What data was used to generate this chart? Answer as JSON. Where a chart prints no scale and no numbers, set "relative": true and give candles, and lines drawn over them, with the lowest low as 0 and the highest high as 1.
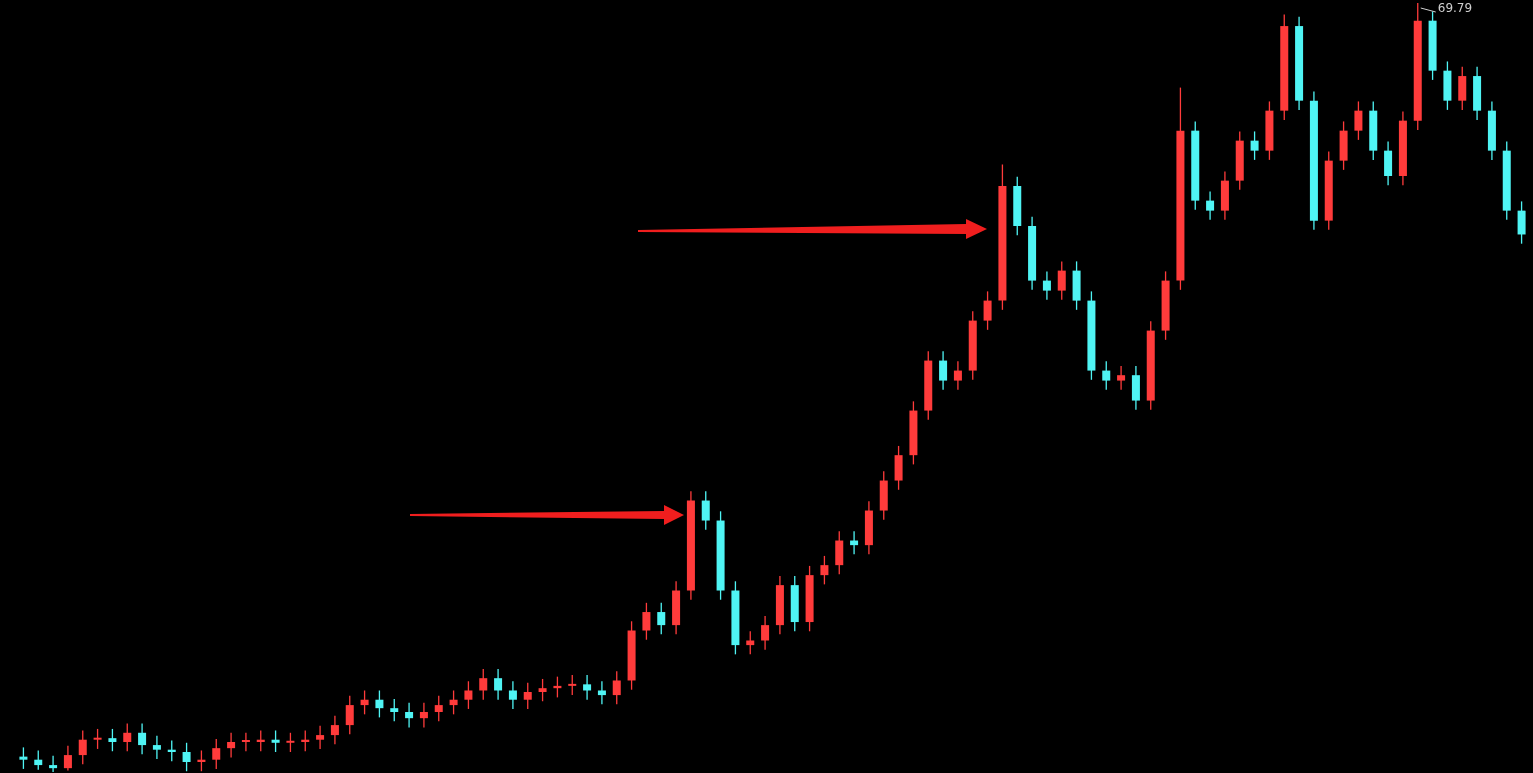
{
  "chart_data": {
    "type": "candlestick",
    "relative": true,
    "annotations": [
      "69.79"
    ],
    "categories": [
      null,
      null,
      null,
      null,
      null,
      null,
      null,
      null,
      null,
      null,
      null,
      null,
      null,
      null,
      null,
      null,
      null,
      null,
      null,
      null,
      null,
      null,
      null,
      null,
      null,
      null,
      null,
      null,
      null,
      null,
      null,
      null,
      null,
      null,
      null,
      null,
      null,
      null,
      null,
      null,
      null,
      null,
      null,
      null,
      null,
      null,
      null,
      null,
      null,
      null,
      null,
      null,
      null,
      null,
      null,
      null,
      null,
      null,
      null,
      null,
      null,
      null,
      null,
      null,
      null,
      null,
      null,
      null,
      null,
      null,
      null,
      null,
      null,
      null,
      null,
      null,
      null,
      null,
      null,
      null,
      null,
      null,
      null,
      null,
      null,
      null,
      null,
      null,
      null,
      null,
      null,
      null,
      null,
      null,
      null,
      null,
      null,
      null,
      null,
      null,
      null,
      null
    ],
    "ohlc": [
      [
        0.02,
        0.032,
        0.004,
        0.016
      ],
      [
        0.016,
        0.028,
        0.003,
        0.009
      ],
      [
        0.009,
        0.021,
        0,
        0.005
      ],
      [
        0.005,
        0.034,
        0.002,
        0.022
      ],
      [
        0.022,
        0.054,
        0.01,
        0.042
      ],
      [
        0.042,
        0.056,
        0.03,
        0.044
      ],
      [
        0.044,
        0.056,
        0.027,
        0.039
      ],
      [
        0.039,
        0.063,
        0.027,
        0.051
      ],
      [
        0.051,
        0.063,
        0.023,
        0.035
      ],
      [
        0.035,
        0.047,
        0.017,
        0.029
      ],
      [
        0.029,
        0.041,
        0.014,
        0.026
      ],
      [
        0.026,
        0.038,
        0.001,
        0.013
      ],
      [
        0.013,
        0.028,
        0.001,
        0.016
      ],
      [
        0.016,
        0.043,
        0.004,
        0.031
      ],
      [
        0.031,
        0.051,
        0.019,
        0.039
      ],
      [
        0.039,
        0.051,
        0.027,
        0.039
      ],
      [
        0.039,
        0.054,
        0.027,
        0.042
      ],
      [
        0.042,
        0.054,
        0.026,
        0.038
      ],
      [
        0.038,
        0.051,
        0.026,
        0.039
      ],
      [
        0.039,
        0.054,
        0.027,
        0.042
      ],
      [
        0.042,
        0.06,
        0.03,
        0.048
      ],
      [
        0.048,
        0.073,
        0.036,
        0.061
      ],
      [
        0.061,
        0.099,
        0.049,
        0.087
      ],
      [
        0.087,
        0.106,
        0.075,
        0.094
      ],
      [
        0.094,
        0.106,
        0.071,
        0.083
      ],
      [
        0.083,
        0.095,
        0.066,
        0.078
      ],
      [
        0.078,
        0.09,
        0.058,
        0.07
      ],
      [
        0.07,
        0.09,
        0.058,
        0.078
      ],
      [
        0.078,
        0.099,
        0.066,
        0.087
      ],
      [
        0.087,
        0.106,
        0.075,
        0.094
      ],
      [
        0.094,
        0.118,
        0.082,
        0.106
      ],
      [
        0.106,
        0.134,
        0.094,
        0.122
      ],
      [
        0.122,
        0.134,
        0.094,
        0.106
      ],
      [
        0.106,
        0.118,
        0.082,
        0.094
      ],
      [
        0.094,
        0.116,
        0.082,
        0.104
      ],
      [
        0.104,
        0.121,
        0.092,
        0.109
      ],
      [
        0.109,
        0.124,
        0.097,
        0.112
      ],
      [
        0.112,
        0.126,
        0.1,
        0.114
      ],
      [
        0.114,
        0.126,
        0.094,
        0.106
      ],
      [
        0.106,
        0.118,
        0.088,
        0.1
      ],
      [
        0.1,
        0.131,
        0.088,
        0.119
      ],
      [
        0.119,
        0.196,
        0.107,
        0.184
      ],
      [
        0.184,
        0.22,
        0.172,
        0.208
      ],
      [
        0.208,
        0.22,
        0.179,
        0.191
      ],
      [
        0.191,
        0.248,
        0.179,
        0.236
      ],
      [
        0.236,
        0.365,
        0.224,
        0.353
      ],
      [
        0.353,
        0.365,
        0.315,
        0.327
      ],
      [
        0.327,
        0.339,
        0.224,
        0.236
      ],
      [
        0.236,
        0.248,
        0.153,
        0.165
      ],
      [
        0.165,
        0.183,
        0.153,
        0.171
      ],
      [
        0.171,
        0.203,
        0.159,
        0.191
      ],
      [
        0.191,
        0.255,
        0.179,
        0.243
      ],
      [
        0.243,
        0.255,
        0.183,
        0.195
      ],
      [
        0.195,
        0.268,
        0.183,
        0.256
      ],
      [
        0.256,
        0.281,
        0.244,
        0.269
      ],
      [
        0.269,
        0.313,
        0.257,
        0.301
      ],
      [
        0.301,
        0.313,
        0.283,
        0.295
      ],
      [
        0.295,
        0.352,
        0.283,
        0.34
      ],
      [
        0.34,
        0.391,
        0.328,
        0.379
      ],
      [
        0.379,
        0.424,
        0.367,
        0.412
      ],
      [
        0.412,
        0.482,
        0.4,
        0.47
      ],
      [
        0.47,
        0.547,
        0.458,
        0.535
      ],
      [
        0.535,
        0.547,
        0.497,
        0.509
      ],
      [
        0.509,
        0.534,
        0.497,
        0.522
      ],
      [
        0.522,
        0.599,
        0.51,
        0.587
      ],
      [
        0.587,
        0.625,
        0.575,
        0.613
      ],
      [
        0.613,
        0.79,
        0.601,
        0.762
      ],
      [
        0.762,
        0.774,
        0.698,
        0.71
      ],
      [
        0.71,
        0.722,
        0.627,
        0.639
      ],
      [
        0.639,
        0.651,
        0.614,
        0.626
      ],
      [
        0.626,
        0.664,
        0.614,
        0.652
      ],
      [
        0.652,
        0.664,
        0.601,
        0.613
      ],
      [
        0.613,
        0.625,
        0.51,
        0.522
      ],
      [
        0.522,
        0.534,
        0.497,
        0.509
      ],
      [
        0.509,
        0.528,
        0.497,
        0.516
      ],
      [
        0.516,
        0.528,
        0.471,
        0.483
      ],
      [
        0.483,
        0.586,
        0.471,
        0.574
      ],
      [
        0.574,
        0.651,
        0.562,
        0.639
      ],
      [
        0.639,
        0.89,
        0.627,
        0.834
      ],
      [
        0.834,
        0.846,
        0.731,
        0.743
      ],
      [
        0.743,
        0.755,
        0.718,
        0.73
      ],
      [
        0.73,
        0.781,
        0.718,
        0.769
      ],
      [
        0.769,
        0.833,
        0.757,
        0.821
      ],
      [
        0.821,
        0.833,
        0.796,
        0.808
      ],
      [
        0.808,
        0.872,
        0.796,
        0.86
      ],
      [
        0.86,
        0.985,
        0.848,
        0.97
      ],
      [
        0.97,
        0.982,
        0.861,
        0.873
      ],
      [
        0.873,
        0.885,
        0.705,
        0.717
      ],
      [
        0.717,
        0.807,
        0.705,
        0.795
      ],
      [
        0.795,
        0.846,
        0.783,
        0.834
      ],
      [
        0.834,
        0.872,
        0.822,
        0.86
      ],
      [
        0.86,
        0.872,
        0.796,
        0.808
      ],
      [
        0.808,
        0.82,
        0.763,
        0.775
      ],
      [
        0.775,
        0.859,
        0.763,
        0.847
      ],
      [
        0.847,
        1,
        0.835,
        0.977
      ],
      [
        0.977,
        0.989,
        0.9,
        0.912
      ],
      [
        0.912,
        0.924,
        0.861,
        0.873
      ],
      [
        0.873,
        0.917,
        0.861,
        0.905
      ],
      [
        0.905,
        0.917,
        0.848,
        0.86
      ],
      [
        0.86,
        0.872,
        0.796,
        0.808
      ],
      [
        0.808,
        0.82,
        0.718,
        0.73
      ],
      [
        0.73,
        0.742,
        0.687,
        0.699
      ]
    ]
  }
}
